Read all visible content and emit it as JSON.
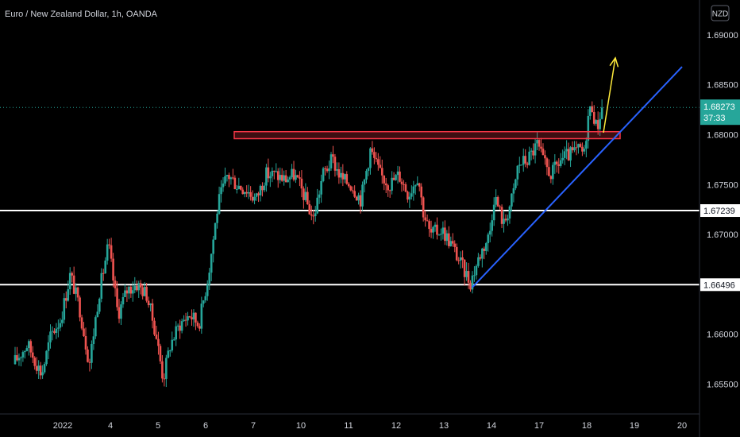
{
  "chart_data": {
    "type": "candlestick",
    "title": "Euro / New Zealand Dollar, 1h, OANDA",
    "currency_badge": "NZD",
    "ylim": [
      1.652,
      1.6935
    ],
    "xlim": [
      0,
      14
    ],
    "x_ticks": [
      {
        "label": "2022",
        "x": 1.0
      },
      {
        "label": "4",
        "x": 2.0
      },
      {
        "label": "5",
        "x": 3.0
      },
      {
        "label": "6",
        "x": 4.0
      },
      {
        "label": "7",
        "x": 5.0
      },
      {
        "label": "10",
        "x": 6.0
      },
      {
        "label": "11",
        "x": 7.0
      },
      {
        "label": "12",
        "x": 8.0
      },
      {
        "label": "13",
        "x": 9.0
      },
      {
        "label": "14",
        "x": 10.0
      },
      {
        "label": "17",
        "x": 11.0
      },
      {
        "label": "18",
        "x": 12.0
      },
      {
        "label": "19",
        "x": 13.0
      },
      {
        "label": "20",
        "x": 14.0
      }
    ],
    "y_ticks": [
      "1.69000",
      "1.68500",
      "1.68000",
      "1.67500",
      "1.67000",
      "1.66500",
      "1.66000",
      "1.65500"
    ],
    "current_price": {
      "label": "1.68273",
      "countdown": "37:33",
      "value": 1.68273
    },
    "levels": [
      {
        "label": "1.67239",
        "value": 1.67239
      },
      {
        "label": "1.66496",
        "value": 1.66496
      }
    ],
    "resistance_zone": {
      "x_start": 4.6,
      "x_end": 12.7,
      "low": 1.6796,
      "high": 1.6803
    },
    "trendline": {
      "points": [
        [
          9.6,
          1.6647
        ],
        [
          14.0,
          1.6868
        ]
      ]
    },
    "arrow": {
      "from": [
        12.35,
        1.6802
      ],
      "to": [
        12.6,
        1.6877
      ]
    },
    "anchors": [
      [
        0.0,
        1.657
      ],
      [
        0.3,
        1.659
      ],
      [
        0.6,
        1.656
      ],
      [
        0.8,
        1.66
      ],
      [
        1.0,
        1.6615
      ],
      [
        1.2,
        1.666
      ],
      [
        1.4,
        1.6625
      ],
      [
        1.6,
        1.657
      ],
      [
        1.8,
        1.664
      ],
      [
        2.0,
        1.669
      ],
      [
        2.2,
        1.662
      ],
      [
        2.4,
        1.6645
      ],
      [
        2.6,
        1.665
      ],
      [
        2.8,
        1.664
      ],
      [
        3.0,
        1.66
      ],
      [
        3.15,
        1.6555
      ],
      [
        3.3,
        1.659
      ],
      [
        3.5,
        1.661
      ],
      [
        3.7,
        1.662
      ],
      [
        3.9,
        1.661
      ],
      [
        4.1,
        1.666
      ],
      [
        4.3,
        1.673
      ],
      [
        4.5,
        1.676
      ],
      [
        4.7,
        1.675
      ],
      [
        4.9,
        1.6745
      ],
      [
        5.1,
        1.6735
      ],
      [
        5.3,
        1.676
      ],
      [
        5.5,
        1.676
      ],
      [
        5.7,
        1.6755
      ],
      [
        5.9,
        1.676
      ],
      [
        6.1,
        1.674
      ],
      [
        6.3,
        1.6715
      ],
      [
        6.5,
        1.676
      ],
      [
        6.7,
        1.6775
      ],
      [
        6.9,
        1.6755
      ],
      [
        7.1,
        1.675
      ],
      [
        7.3,
        1.6735
      ],
      [
        7.5,
        1.6785
      ],
      [
        7.7,
        1.676
      ],
      [
        7.9,
        1.675
      ],
      [
        8.1,
        1.676
      ],
      [
        8.3,
        1.674
      ],
      [
        8.5,
        1.676
      ],
      [
        8.6,
        1.6725
      ],
      [
        8.75,
        1.67
      ],
      [
        9.0,
        1.6705
      ],
      [
        9.2,
        1.669
      ],
      [
        9.4,
        1.667
      ],
      [
        9.6,
        1.6652
      ],
      [
        9.8,
        1.668
      ],
      [
        10.0,
        1.67
      ],
      [
        10.1,
        1.674
      ],
      [
        10.3,
        1.671
      ],
      [
        10.5,
        1.674
      ],
      [
        10.6,
        1.677
      ],
      [
        10.8,
        1.6775
      ],
      [
        11.0,
        1.679
      ],
      [
        11.15,
        1.677
      ],
      [
        11.3,
        1.676
      ],
      [
        11.5,
        1.6775
      ],
      [
        11.7,
        1.678
      ],
      [
        11.9,
        1.6785
      ],
      [
        12.0,
        1.678
      ],
      [
        12.05,
        1.6815
      ],
      [
        12.15,
        1.683
      ],
      [
        12.25,
        1.6805
      ],
      [
        12.35,
        1.6827
      ]
    ]
  }
}
